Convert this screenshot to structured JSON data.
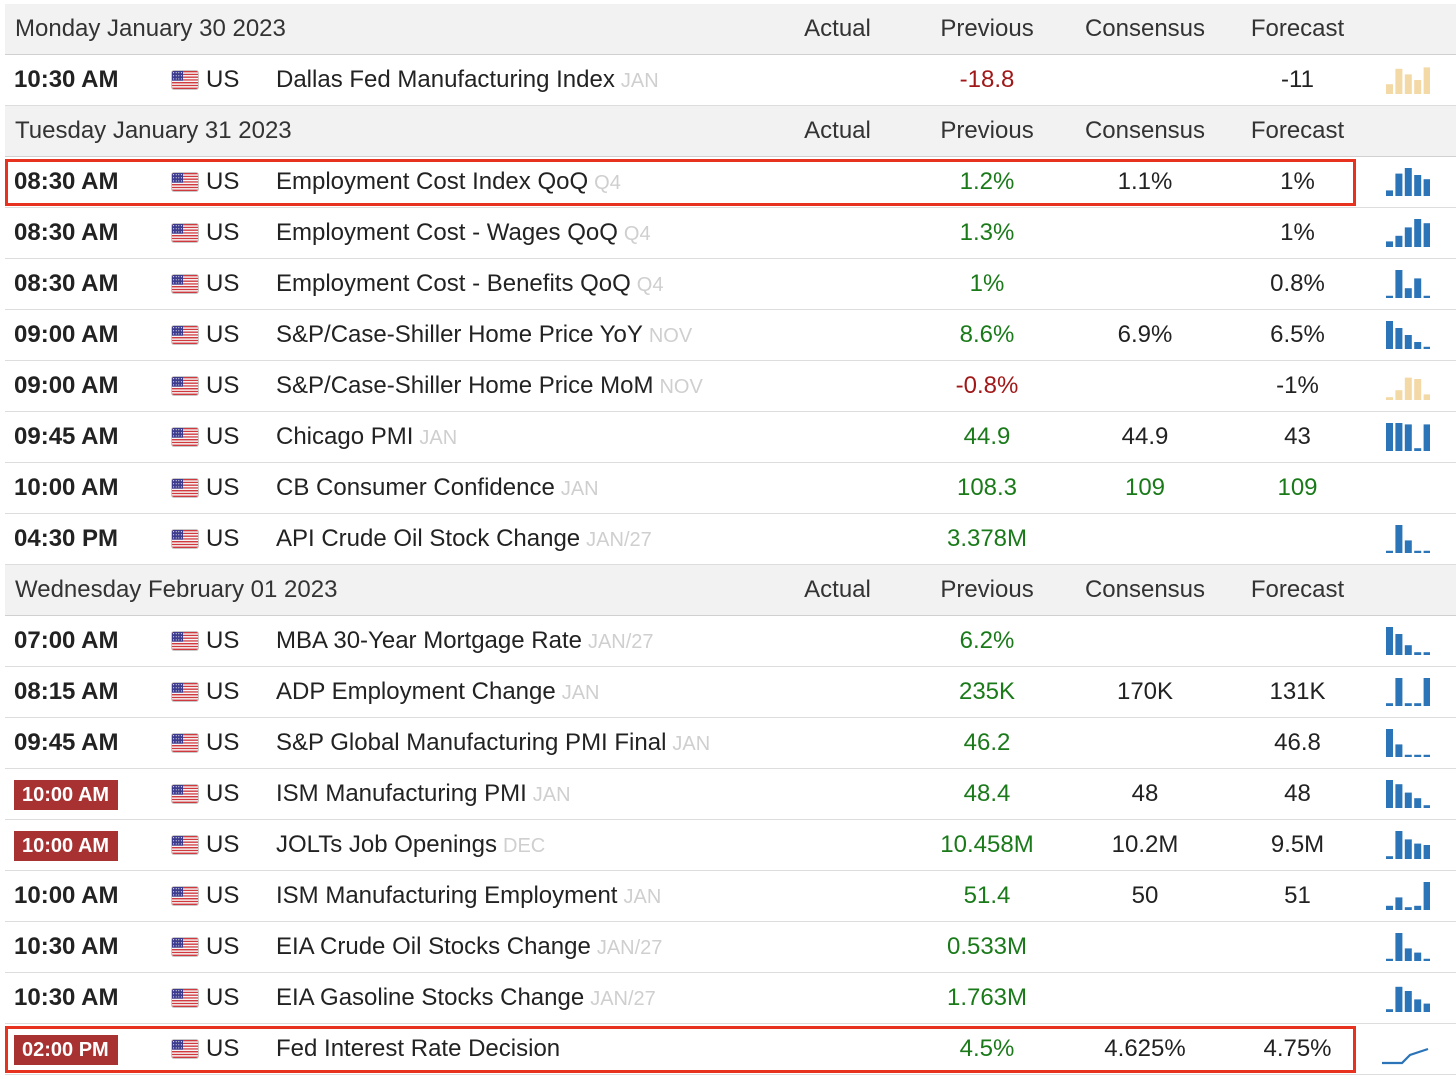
{
  "columns": {
    "actual": "Actual",
    "previous": "Previous",
    "consensus": "Consensus",
    "forecast": "Forecast"
  },
  "colors": {
    "positive": "#1a7a1a",
    "negative": "#a01818",
    "badge": "#a83232",
    "spark_blue": "#2b74b8",
    "spark_tan": "#f3d9a6",
    "highlight": "#e6321e"
  },
  "days": [
    {
      "date": "Monday January 30 2023",
      "events": [
        {
          "time": "10:30 AM",
          "badge": false,
          "country": "US",
          "flag_icon": "us-flag-icon",
          "name": "Dallas Fed Manufacturing Index",
          "ref": "JAN",
          "actual": "",
          "previous": "-18.8",
          "previous_color": "red",
          "consensus": "",
          "consensus_color": "neutral",
          "forecast": "-11",
          "forecast_color": "neutral",
          "spark": {
            "icon": "sparkline-bars-icon",
            "color": "tan",
            "bars": [
              0.35,
              0.9,
              0.7,
              0.5,
              0.95
            ]
          },
          "highlighted": false
        }
      ]
    },
    {
      "date": "Tuesday January 31 2023",
      "events": [
        {
          "time": "08:30 AM",
          "badge": false,
          "country": "US",
          "flag_icon": "us-flag-icon",
          "name": "Employment Cost Index QoQ",
          "ref": "Q4",
          "actual": "",
          "previous": "1.2%",
          "previous_color": "green",
          "consensus": "1.1%",
          "consensus_color": "neutral",
          "forecast": "1%",
          "forecast_color": "neutral",
          "spark": {
            "icon": "sparkline-bars-icon",
            "color": "blue",
            "bars": [
              0.2,
              0.8,
              1.0,
              0.75,
              0.6
            ]
          },
          "highlighted": true
        },
        {
          "time": "08:30 AM",
          "badge": false,
          "country": "US",
          "flag_icon": "us-flag-icon",
          "name": "Employment Cost - Wages QoQ",
          "ref": "Q4",
          "actual": "",
          "previous": "1.3%",
          "previous_color": "green",
          "consensus": "",
          "consensus_color": "neutral",
          "forecast": "1%",
          "forecast_color": "neutral",
          "spark": {
            "icon": "sparkline-bars-icon",
            "color": "blue",
            "bars": [
              0.2,
              0.4,
              0.7,
              1.0,
              0.85
            ]
          },
          "highlighted": false
        },
        {
          "time": "08:30 AM",
          "badge": false,
          "country": "US",
          "flag_icon": "us-flag-icon",
          "name": "Employment Cost - Benefits QoQ",
          "ref": "Q4",
          "actual": "",
          "previous": "1%",
          "previous_color": "green",
          "consensus": "",
          "consensus_color": "neutral",
          "forecast": "0.8%",
          "forecast_color": "neutral",
          "spark": {
            "icon": "sparkline-bars-icon",
            "color": "blue",
            "bars": [
              0.08,
              1.0,
              0.35,
              0.7,
              0.08
            ]
          },
          "highlighted": false
        },
        {
          "time": "09:00 AM",
          "badge": false,
          "country": "US",
          "flag_icon": "us-flag-icon",
          "name": "S&P/Case-Shiller Home Price YoY",
          "ref": "NOV",
          "actual": "",
          "previous": "8.6%",
          "previous_color": "green",
          "consensus": "6.9%",
          "consensus_color": "neutral",
          "forecast": "6.5%",
          "forecast_color": "neutral",
          "spark": {
            "icon": "sparkline-bars-icon",
            "color": "blue",
            "bars": [
              1.0,
              0.75,
              0.5,
              0.25,
              0.08
            ]
          },
          "highlighted": false
        },
        {
          "time": "09:00 AM",
          "badge": false,
          "country": "US",
          "flag_icon": "us-flag-icon",
          "name": "S&P/Case-Shiller Home Price MoM",
          "ref": "NOV",
          "actual": "",
          "previous": "-0.8%",
          "previous_color": "red",
          "consensus": "",
          "consensus_color": "neutral",
          "forecast": "-1%",
          "forecast_color": "neutral",
          "spark": {
            "icon": "sparkline-bars-icon",
            "color": "tan",
            "bars": [
              0.1,
              0.35,
              0.8,
              0.75,
              0.2
            ]
          },
          "highlighted": false
        },
        {
          "time": "09:45 AM",
          "badge": false,
          "country": "US",
          "flag_icon": "us-flag-icon",
          "name": "Chicago PMI",
          "ref": "JAN",
          "actual": "",
          "previous": "44.9",
          "previous_color": "green",
          "consensus": "44.9",
          "consensus_color": "neutral",
          "forecast": "43",
          "forecast_color": "neutral",
          "spark": {
            "icon": "sparkline-bars-icon",
            "color": "blue",
            "bars": [
              1.0,
              1.0,
              0.95,
              0.1,
              0.95
            ]
          },
          "highlighted": false
        },
        {
          "time": "10:00 AM",
          "badge": false,
          "country": "US",
          "flag_icon": "us-flag-icon",
          "name": "CB Consumer Confidence",
          "ref": "JAN",
          "actual": "",
          "previous": "108.3",
          "previous_color": "green",
          "consensus": "109",
          "consensus_color": "green",
          "forecast": "109",
          "forecast_color": "green",
          "spark": null,
          "highlighted": false
        },
        {
          "time": "04:30 PM",
          "badge": false,
          "country": "US",
          "flag_icon": "us-flag-icon",
          "name": "API Crude Oil Stock Change",
          "ref": "JAN/27",
          "actual": "",
          "previous": "3.378M",
          "previous_color": "green",
          "consensus": "",
          "consensus_color": "neutral",
          "forecast": "",
          "forecast_color": "neutral",
          "spark": {
            "icon": "sparkline-bars-icon",
            "color": "blue",
            "bars": [
              0.08,
              1.0,
              0.45,
              0.08,
              0.08
            ]
          },
          "highlighted": false
        }
      ]
    },
    {
      "date": "Wednesday February 01 2023",
      "events": [
        {
          "time": "07:00 AM",
          "badge": false,
          "country": "US",
          "flag_icon": "us-flag-icon",
          "name": "MBA 30-Year Mortgage Rate",
          "ref": "JAN/27",
          "actual": "",
          "previous": "6.2%",
          "previous_color": "green",
          "consensus": "",
          "consensus_color": "neutral",
          "forecast": "",
          "forecast_color": "neutral",
          "spark": {
            "icon": "sparkline-bars-icon",
            "color": "blue",
            "bars": [
              1.0,
              0.75,
              0.35,
              0.1,
              0.1
            ]
          },
          "highlighted": false
        },
        {
          "time": "08:15 AM",
          "badge": false,
          "country": "US",
          "flag_icon": "us-flag-icon",
          "name": "ADP Employment Change",
          "ref": "JAN",
          "actual": "",
          "previous": "235K",
          "previous_color": "green",
          "consensus": "170K",
          "consensus_color": "neutral",
          "forecast": "131K",
          "forecast_color": "neutral",
          "spark": {
            "icon": "sparkline-bars-icon",
            "color": "blue",
            "bars": [
              0.1,
              1.0,
              0.1,
              0.1,
              1.0
            ]
          },
          "highlighted": false
        },
        {
          "time": "09:45 AM",
          "badge": false,
          "country": "US",
          "flag_icon": "us-flag-icon",
          "name": "S&P Global Manufacturing PMI Final",
          "ref": "JAN",
          "actual": "",
          "previous": "46.2",
          "previous_color": "green",
          "consensus": "",
          "consensus_color": "neutral",
          "forecast": "46.8",
          "forecast_color": "neutral",
          "spark": {
            "icon": "sparkline-bars-icon",
            "color": "blue",
            "bars": [
              1.0,
              0.45,
              0.08,
              0.08,
              0.08
            ]
          },
          "highlighted": false
        },
        {
          "time": "10:00 AM",
          "badge": true,
          "country": "US",
          "flag_icon": "us-flag-icon",
          "name": "ISM Manufacturing PMI",
          "ref": "JAN",
          "actual": "",
          "previous": "48.4",
          "previous_color": "green",
          "consensus": "48",
          "consensus_color": "neutral",
          "forecast": "48",
          "forecast_color": "neutral",
          "spark": {
            "icon": "sparkline-bars-icon",
            "color": "blue",
            "bars": [
              1.0,
              0.85,
              0.55,
              0.35,
              0.1
            ]
          },
          "highlighted": false
        },
        {
          "time": "10:00 AM",
          "badge": true,
          "country": "US",
          "flag_icon": "us-flag-icon",
          "name": "JOLTs Job Openings",
          "ref": "DEC",
          "actual": "",
          "previous": "10.458M",
          "previous_color": "green",
          "consensus": "10.2M",
          "consensus_color": "neutral",
          "forecast": "9.5M",
          "forecast_color": "neutral",
          "spark": {
            "icon": "sparkline-bars-icon",
            "color": "blue",
            "bars": [
              0.1,
              1.0,
              0.7,
              0.55,
              0.5
            ]
          },
          "highlighted": false
        },
        {
          "time": "10:00 AM",
          "badge": false,
          "country": "US",
          "flag_icon": "us-flag-icon",
          "name": "ISM Manufacturing Employment",
          "ref": "JAN",
          "actual": "",
          "previous": "51.4",
          "previous_color": "green",
          "consensus": "50",
          "consensus_color": "neutral",
          "forecast": "51",
          "forecast_color": "neutral",
          "spark": {
            "icon": "sparkline-bars-icon",
            "color": "blue",
            "bars": [
              0.15,
              0.45,
              0.1,
              0.15,
              1.0
            ]
          },
          "highlighted": false
        },
        {
          "time": "10:30 AM",
          "badge": false,
          "country": "US",
          "flag_icon": "us-flag-icon",
          "name": "EIA Crude Oil Stocks Change",
          "ref": "JAN/27",
          "actual": "",
          "previous": "0.533M",
          "previous_color": "green",
          "consensus": "",
          "consensus_color": "neutral",
          "forecast": "",
          "forecast_color": "neutral",
          "spark": {
            "icon": "sparkline-bars-icon",
            "color": "blue",
            "bars": [
              0.08,
              1.0,
              0.45,
              0.3,
              0.08
            ]
          },
          "highlighted": false
        },
        {
          "time": "10:30 AM",
          "badge": false,
          "country": "US",
          "flag_icon": "us-flag-icon",
          "name": "EIA Gasoline Stocks Change",
          "ref": "JAN/27",
          "actual": "",
          "previous": "1.763M",
          "previous_color": "green",
          "consensus": "",
          "consensus_color": "neutral",
          "forecast": "",
          "forecast_color": "neutral",
          "spark": {
            "icon": "sparkline-bars-icon",
            "color": "blue",
            "bars": [
              0.1,
              0.9,
              0.75,
              0.45,
              0.3
            ]
          },
          "highlighted": false
        },
        {
          "time": "02:00 PM",
          "badge": true,
          "country": "US",
          "flag_icon": "us-flag-icon",
          "name": "Fed Interest Rate Decision",
          "ref": "",
          "actual": "",
          "previous": "4.5%",
          "previous_color": "green",
          "consensus": "4.625%",
          "consensus_color": "neutral",
          "forecast": "4.75%",
          "forecast_color": "neutral",
          "spark": {
            "icon": "sparkline-step-line-icon",
            "color": "blue",
            "type": "step-line"
          },
          "highlighted": true
        }
      ]
    }
  ]
}
